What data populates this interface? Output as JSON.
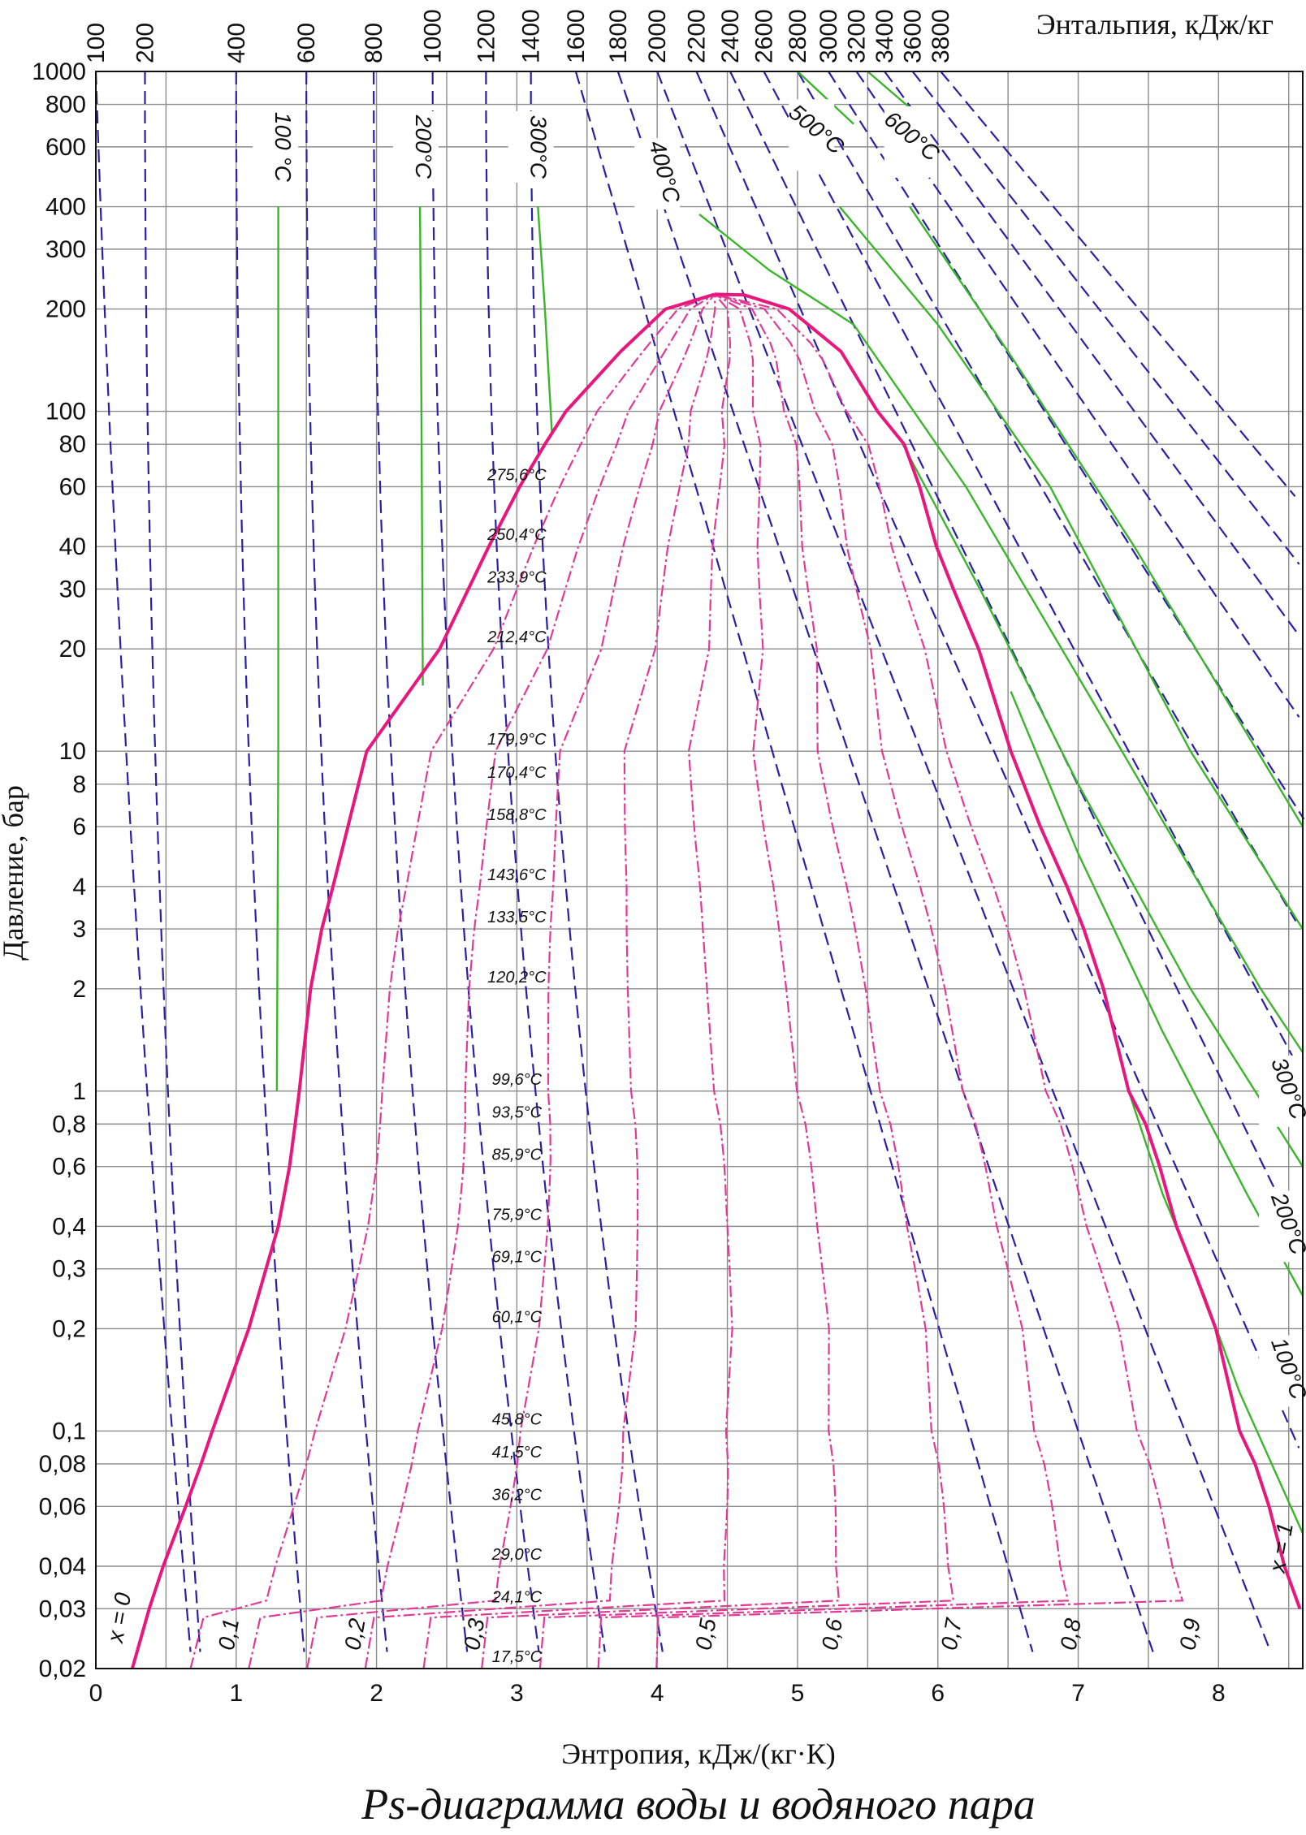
{
  "caption": "Ps-диаграмма воды и водяного пара",
  "chart_data": {
    "type": "line",
    "title": "Ps-диаграмма воды и водяного пара",
    "xlabel": "Энтропия, кДж/(кг·К)",
    "ylabel": "Давление, бар",
    "top_axis_label": "Энтальпия, кДж/кг",
    "xlim": [
      0,
      8.6
    ],
    "ylim": [
      0.02,
      1000
    ],
    "y_scale": "log",
    "grid": true,
    "x_ticks": [
      "0",
      "1",
      "2",
      "3",
      "4",
      "5",
      "6",
      "7",
      "8"
    ],
    "y_ticks": [
      {
        "value": 1000,
        "label": "1000"
      },
      {
        "value": 800,
        "label": "800"
      },
      {
        "value": 600,
        "label": "600"
      },
      {
        "value": 400,
        "label": "400"
      },
      {
        "value": 300,
        "label": "300"
      },
      {
        "value": 200,
        "label": "200"
      },
      {
        "value": 100,
        "label": "100"
      },
      {
        "value": 80,
        "label": "80"
      },
      {
        "value": 60,
        "label": "60"
      },
      {
        "value": 40,
        "label": "40"
      },
      {
        "value": 30,
        "label": "30"
      },
      {
        "value": 20,
        "label": "20"
      },
      {
        "value": 10,
        "label": "10"
      },
      {
        "value": 8,
        "label": "8"
      },
      {
        "value": 6,
        "label": "6"
      },
      {
        "value": 4,
        "label": "4"
      },
      {
        "value": 3,
        "label": "3"
      },
      {
        "value": 2,
        "label": "2"
      },
      {
        "value": 1,
        "label": "1"
      },
      {
        "value": 0.8,
        "label": "0,8"
      },
      {
        "value": 0.6,
        "label": "0,6"
      },
      {
        "value": 0.4,
        "label": "0,4"
      },
      {
        "value": 0.3,
        "label": "0,3"
      },
      {
        "value": 0.2,
        "label": "0,2"
      },
      {
        "value": 0.1,
        "label": "0,1"
      },
      {
        "value": 0.08,
        "label": "0,08"
      },
      {
        "value": 0.06,
        "label": "0,06"
      },
      {
        "value": 0.04,
        "label": "0,04"
      },
      {
        "value": 0.03,
        "label": "0,03"
      },
      {
        "value": 0.02,
        "label": "0,02"
      }
    ],
    "enthalpy_labels": [
      {
        "label": "100",
        "s_top": 0.0
      },
      {
        "label": "200",
        "s_top": 0.35
      },
      {
        "label": "400",
        "s_top": 1.0
      },
      {
        "label": "600",
        "s_top": 1.5
      },
      {
        "label": "800",
        "s_top": 1.98
      },
      {
        "label": "1000",
        "s_top": 2.4
      },
      {
        "label": "1200",
        "s_top": 2.78
      },
      {
        "label": "1400",
        "s_top": 3.1
      },
      {
        "label": "1600",
        "s_top": 3.42
      },
      {
        "label": "1800",
        "s_top": 3.72
      },
      {
        "label": "2000",
        "s_top": 4.0
      },
      {
        "label": "2200",
        "s_top": 4.28
      },
      {
        "label": "2400",
        "s_top": 4.52
      },
      {
        "label": "2600",
        "s_top": 4.76
      },
      {
        "label": "2800",
        "s_top": 5.0
      },
      {
        "label": "3000",
        "s_top": 5.22
      },
      {
        "label": "3200",
        "s_top": 5.42
      },
      {
        "label": "3400",
        "s_top": 5.62
      },
      {
        "label": "3600",
        "s_top": 5.82
      },
      {
        "label": "3800",
        "s_top": 6.02
      }
    ],
    "saturation_curve": {
      "liquid": [
        [
          0.26,
          0.02
        ],
        [
          0.38,
          0.03
        ],
        [
          0.48,
          0.04
        ],
        [
          0.64,
          0.06
        ],
        [
          0.75,
          0.08
        ],
        [
          0.83,
          0.1
        ],
        [
          1.09,
          0.2
        ],
        [
          1.3,
          0.4
        ],
        [
          1.38,
          0.6
        ],
        [
          1.42,
          0.8
        ],
        [
          1.45,
          1.0
        ],
        [
          1.53,
          2.0
        ],
        [
          1.61,
          3.0
        ],
        [
          1.69,
          4.0
        ],
        [
          1.93,
          10.0
        ],
        [
          2.45,
          20.0
        ],
        [
          2.8,
          40.0
        ],
        [
          3.02,
          60.0
        ],
        [
          3.2,
          80.0
        ],
        [
          3.35,
          100.0
        ],
        [
          3.74,
          150.0
        ],
        [
          4.06,
          200.0
        ],
        [
          4.41,
          221.0
        ]
      ],
      "vapor": [
        [
          4.41,
          221.0
        ],
        [
          4.62,
          220.0
        ],
        [
          4.94,
          200.0
        ],
        [
          5.31,
          150.0
        ],
        [
          5.57,
          100.0
        ],
        [
          5.76,
          80.0
        ],
        [
          5.87,
          60.0
        ],
        [
          5.99,
          40.0
        ],
        [
          6.11,
          30.0
        ],
        [
          6.29,
          20.0
        ],
        [
          6.52,
          10.0
        ],
        [
          6.73,
          6.0
        ],
        [
          6.92,
          4.0
        ],
        [
          7.04,
          3.0
        ],
        [
          7.18,
          2.0
        ],
        [
          7.36,
          1.0
        ],
        [
          7.48,
          0.8
        ],
        [
          7.58,
          0.6
        ],
        [
          7.7,
          0.4
        ],
        [
          7.82,
          0.3
        ],
        [
          7.98,
          0.2
        ],
        [
          8.15,
          0.1
        ],
        [
          8.26,
          0.08
        ],
        [
          8.36,
          0.06
        ],
        [
          8.47,
          0.04
        ],
        [
          8.58,
          0.03
        ]
      ]
    },
    "quality_labels": [
      {
        "label": "x = 0",
        "s": 0.22,
        "p": 0.028
      },
      {
        "label": "0,1",
        "s": 1.0,
        "p": 0.025
      },
      {
        "label": "0,2",
        "s": 1.9,
        "p": 0.025
      },
      {
        "label": "0,3",
        "s": 2.75,
        "p": 0.025
      },
      {
        "label": "0,5",
        "s": 4.4,
        "p": 0.025
      },
      {
        "label": "0,6",
        "s": 5.3,
        "p": 0.025
      },
      {
        "label": "0,7",
        "s": 6.15,
        "p": 0.025
      },
      {
        "label": "0,8",
        "s": 7.0,
        "p": 0.025
      },
      {
        "label": "0,9",
        "s": 7.85,
        "p": 0.025
      },
      {
        "label": "x = 1",
        "s": 8.5,
        "p": 0.045
      }
    ],
    "saturation_temperatures": [
      {
        "label": "275,6°C",
        "p": 60
      },
      {
        "label": "250,4°C",
        "p": 40
      },
      {
        "label": "233,9°C",
        "p": 30
      },
      {
        "label": "212,4°C",
        "p": 20
      },
      {
        "label": "179,9°C",
        "p": 10
      },
      {
        "label": "170,4°C",
        "p": 8
      },
      {
        "label": "158,8°C",
        "p": 6
      },
      {
        "label": "143,6°C",
        "p": 4
      },
      {
        "label": "133,5°C",
        "p": 3
      },
      {
        "label": "120,2°C",
        "p": 2
      },
      {
        "label": "99,6°C",
        "p": 1
      },
      {
        "label": "93,5°C",
        "p": 0.8
      },
      {
        "label": "85,9°C",
        "p": 0.6
      },
      {
        "label": "75,9°C",
        "p": 0.4
      },
      {
        "label": "69,1°C",
        "p": 0.3
      },
      {
        "label": "60,1°C",
        "p": 0.2
      },
      {
        "label": "45,8°C",
        "p": 0.1
      },
      {
        "label": "41,5°C",
        "p": 0.08
      },
      {
        "label": "36,2°C",
        "p": 0.06
      },
      {
        "label": "29,0°C",
        "p": 0.04
      },
      {
        "label": "24,1°C",
        "p": 0.03
      },
      {
        "label": "17,5°C",
        "p": 0.02
      }
    ],
    "isotherm_labels": [
      {
        "label": "100 °C",
        "s": 1.28,
        "p": 600,
        "rotate": 90
      },
      {
        "label": "200°C",
        "s": 2.28,
        "p": 600,
        "rotate": 90
      },
      {
        "label": "300°C",
        "s": 3.1,
        "p": 600,
        "rotate": 90
      },
      {
        "label": "400°C",
        "s": 4.0,
        "p": 500,
        "rotate": 75
      },
      {
        "label": "500°C",
        "s": 5.1,
        "p": 650,
        "rotate": 40
      },
      {
        "label": "600°C",
        "s": 5.78,
        "p": 620,
        "rotate": 40
      },
      {
        "label": "300°C",
        "s": 8.45,
        "p": 1.0,
        "rotate": 70
      },
      {
        "label": "200°C",
        "s": 8.45,
        "p": 0.4,
        "rotate": 70
      },
      {
        "label": "100°C",
        "s": 8.45,
        "p": 0.15,
        "rotate": 70
      }
    ],
    "colors": {
      "saturation": "#e8177d",
      "quality": "#e03a94",
      "enthalpy": "#2b1fa6",
      "isotherm": "#3bb52a",
      "grid": "#8c8c8c"
    }
  }
}
